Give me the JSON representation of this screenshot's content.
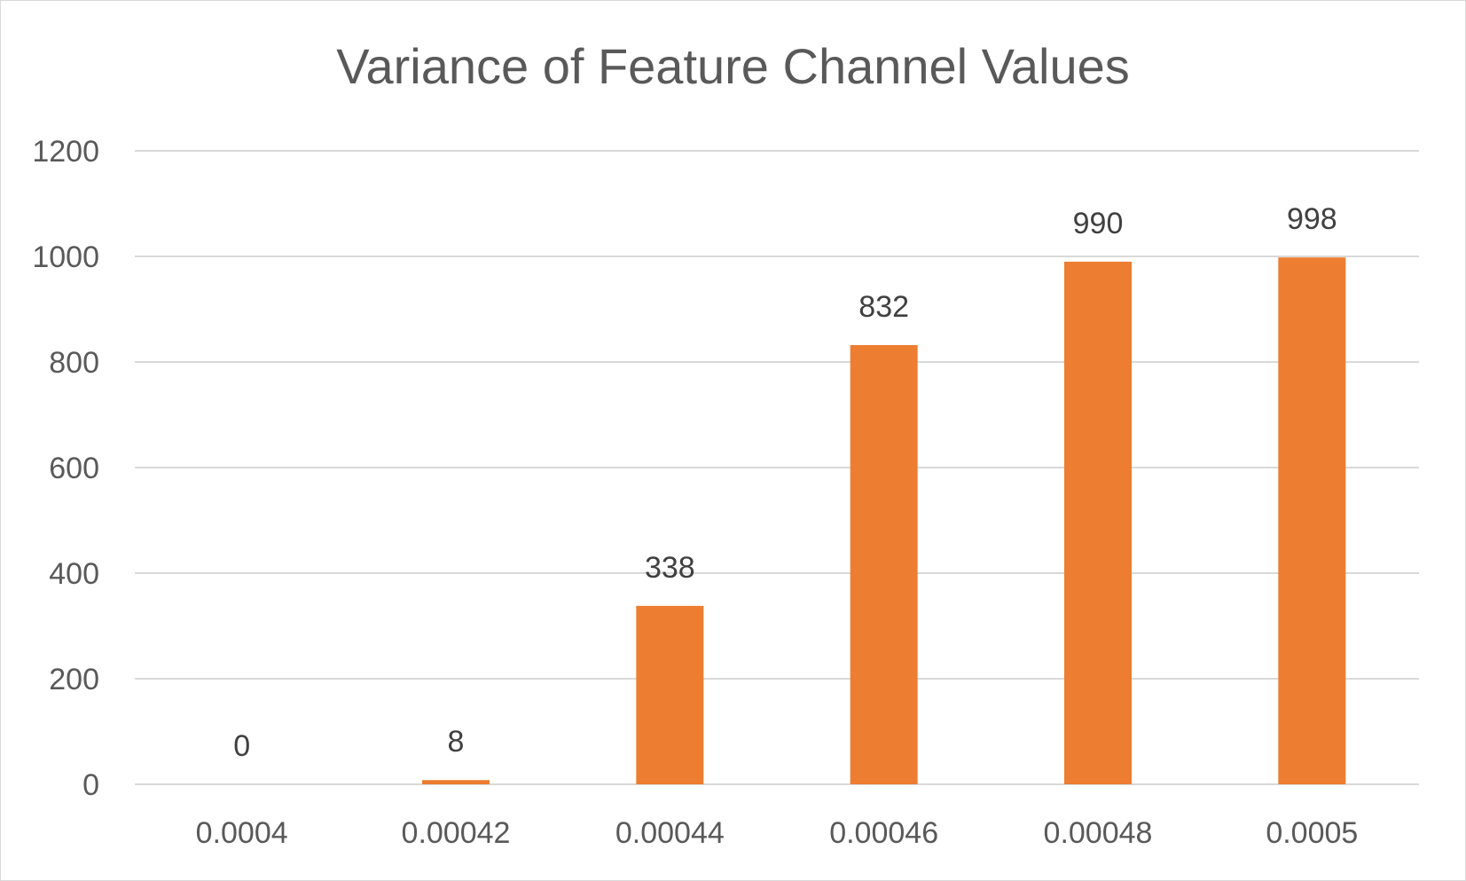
{
  "chart_data": {
    "type": "bar",
    "title": "Variance of Feature Channel Values",
    "xlabel": "",
    "ylabel": "",
    "categories": [
      "0.0004",
      "0.00042",
      "0.00044",
      "0.00046",
      "0.00048",
      "0.0005"
    ],
    "series": [
      {
        "values": [
          0,
          8,
          338,
          832,
          990,
          998
        ],
        "color": "#ED7D31"
      }
    ],
    "data_labels": [
      "0",
      "8",
      "338",
      "832",
      "990",
      "998"
    ],
    "ylim": [
      0,
      1200
    ],
    "yticks": [
      0,
      200,
      400,
      600,
      800,
      1000,
      1200
    ],
    "ytick_labels": [
      "0",
      "200",
      "400",
      "600",
      "800",
      "1000",
      "1200"
    ],
    "grid": true,
    "legend": "none"
  }
}
